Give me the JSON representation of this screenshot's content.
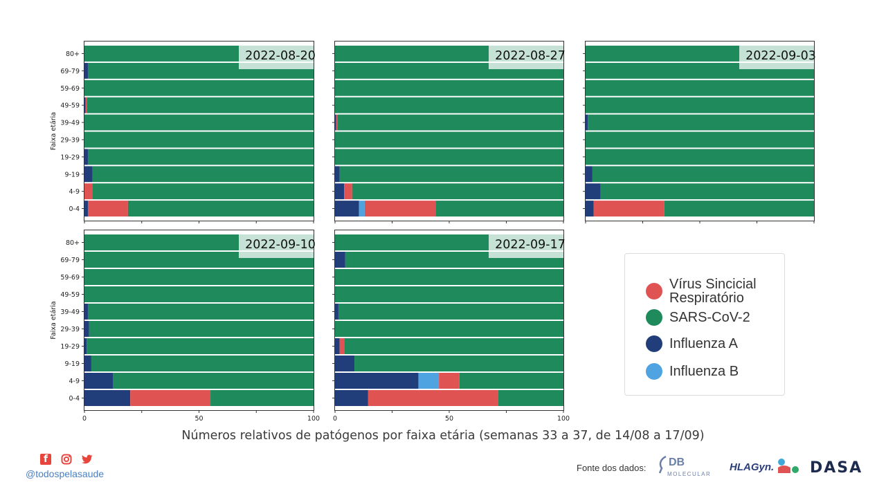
{
  "colors": {
    "Vírus Sincicial Respiratório": "#e05353",
    "SARS-CoV-2": "#1f8a5c",
    "Influenza A": "#213e7a",
    "Influenza B": "#4fa3e0"
  },
  "chart_data": [
    {
      "type": "bar",
      "orientation": "horizontal",
      "stacked": true,
      "title": "2022-08-20",
      "ylabel": "Faixa etária",
      "xlim": [
        0,
        100
      ],
      "categories": [
        "80+",
        "69-79",
        "59-69",
        "49-59",
        "39-49",
        "29-39",
        "19-29",
        "9-19",
        "4-9",
        "0-4"
      ],
      "series": [
        {
          "name": "Influenza A",
          "values": [
            0,
            1.5,
            0,
            0.5,
            0,
            0,
            1.5,
            3.5,
            0,
            1.5
          ]
        },
        {
          "name": "Influenza B",
          "values": [
            0,
            0,
            0,
            0,
            0,
            0,
            0,
            0,
            0,
            0
          ]
        },
        {
          "name": "Vírus Sincicial Respiratório",
          "values": [
            0,
            0,
            0,
            0.5,
            0,
            0,
            0,
            0,
            3.5,
            17.5
          ]
        },
        {
          "name": "SARS-CoV-2",
          "values": [
            100,
            98.5,
            100,
            99,
            100,
            100,
            98.5,
            96.5,
            96.5,
            81
          ]
        }
      ]
    },
    {
      "type": "bar",
      "orientation": "horizontal",
      "stacked": true,
      "title": "2022-08-27",
      "xlim": [
        0,
        100
      ],
      "categories": [
        "80+",
        "69-79",
        "59-69",
        "49-59",
        "39-49",
        "29-39",
        "19-29",
        "9-19",
        "4-9",
        "0-4"
      ],
      "series": [
        {
          "name": "Influenza A",
          "values": [
            0,
            0,
            0,
            0,
            0.5,
            0,
            0,
            2,
            4,
            10.5
          ]
        },
        {
          "name": "Influenza B",
          "values": [
            0,
            0,
            0,
            0,
            0,
            0,
            0,
            0,
            0,
            2.5
          ]
        },
        {
          "name": "Vírus Sincicial Respiratório",
          "values": [
            0,
            0,
            0,
            0,
            0.5,
            0,
            0,
            0,
            3.5,
            31
          ]
        },
        {
          "name": "SARS-CoV-2",
          "values": [
            100,
            100,
            100,
            100,
            99,
            100,
            100,
            98,
            92.5,
            56
          ]
        }
      ]
    },
    {
      "type": "bar",
      "orientation": "horizontal",
      "stacked": true,
      "title": "2022-09-03",
      "xlim": [
        0,
        100
      ],
      "categories": [
        "80+",
        "69-79",
        "59-69",
        "49-59",
        "39-49",
        "29-39",
        "19-29",
        "9-19",
        "4-9",
        "0-4"
      ],
      "series": [
        {
          "name": "Influenza A",
          "values": [
            0,
            0,
            0,
            0,
            1,
            0,
            0,
            3,
            6.5,
            3.5
          ]
        },
        {
          "name": "Influenza B",
          "values": [
            0,
            0,
            0,
            0,
            0,
            0,
            0,
            0,
            0,
            0
          ]
        },
        {
          "name": "Vírus Sincicial Respiratório",
          "values": [
            0,
            0,
            0,
            0,
            0,
            0,
            0,
            0,
            0,
            31
          ]
        },
        {
          "name": "SARS-CoV-2",
          "values": [
            100,
            100,
            100,
            100,
            99,
            100,
            100,
            97,
            93.5,
            65.5
          ]
        }
      ]
    },
    {
      "type": "bar",
      "orientation": "horizontal",
      "stacked": true,
      "title": "2022-09-10",
      "ylabel": "Faixa etária",
      "xlim": [
        0,
        100
      ],
      "xticks": [
        0,
        50,
        100
      ],
      "categories": [
        "80+",
        "69-79",
        "59-69",
        "49-59",
        "39-49",
        "29-39",
        "19-29",
        "9-19",
        "4-9",
        "0-4"
      ],
      "series": [
        {
          "name": "Influenza A",
          "values": [
            0,
            0,
            0,
            0,
            1.5,
            2,
            1,
            3,
            12.5,
            20
          ]
        },
        {
          "name": "Influenza B",
          "values": [
            0,
            0,
            0,
            0,
            0,
            0,
            0,
            0,
            0,
            0
          ]
        },
        {
          "name": "Vírus Sincicial Respiratório",
          "values": [
            0,
            0,
            0,
            0,
            0,
            0,
            0,
            0,
            0,
            35
          ]
        },
        {
          "name": "SARS-CoV-2",
          "values": [
            100,
            100,
            100,
            100,
            98.5,
            98,
            99,
            97,
            87.5,
            45
          ]
        }
      ]
    },
    {
      "type": "bar",
      "orientation": "horizontal",
      "stacked": true,
      "title": "2022-09-17",
      "xlim": [
        0,
        100
      ],
      "xticks": [
        0,
        50,
        100
      ],
      "categories": [
        "80+",
        "69-79",
        "59-69",
        "49-59",
        "39-49",
        "29-39",
        "19-29",
        "9-19",
        "4-9",
        "0-4"
      ],
      "series": [
        {
          "name": "Influenza A",
          "values": [
            0,
            4.5,
            0,
            0,
            1.5,
            0,
            2,
            8.5,
            36.5,
            14.5
          ]
        },
        {
          "name": "Influenza B",
          "values": [
            0,
            0,
            0,
            0,
            0,
            0,
            0,
            0,
            9,
            0
          ]
        },
        {
          "name": "Vírus Sincicial Respiratório",
          "values": [
            0,
            0,
            0,
            0,
            0,
            0,
            2,
            0,
            9,
            57
          ]
        },
        {
          "name": "SARS-CoV-2",
          "values": [
            100,
            95.5,
            100,
            100,
            98.5,
            100,
            96,
            91.5,
            45.5,
            28.5
          ]
        }
      ]
    }
  ],
  "legend": {
    "items": [
      {
        "label": "Vírus Sincicial Respiratório",
        "color": "#e05353"
      },
      {
        "label": "SARS-CoV-2",
        "color": "#1f8a5c"
      },
      {
        "label": "Influenza A",
        "color": "#213e7a"
      },
      {
        "label": "Influenza B",
        "color": "#4fa3e0"
      }
    ]
  },
  "caption": "Números relativos de patógenos por faixa etária (semanas 33 a 37, de 14/08 a 17/09)",
  "footer": {
    "social_icons": [
      "facebook-icon",
      "instagram-icon",
      "twitter-icon"
    ],
    "handle": "@todospelasaude",
    "source_label": "Fonte dos dados:",
    "logos": {
      "db": "DB",
      "db_sub": "MOLECULAR",
      "hlagyn": "HLAGyn.",
      "dasa": "DASA"
    }
  }
}
